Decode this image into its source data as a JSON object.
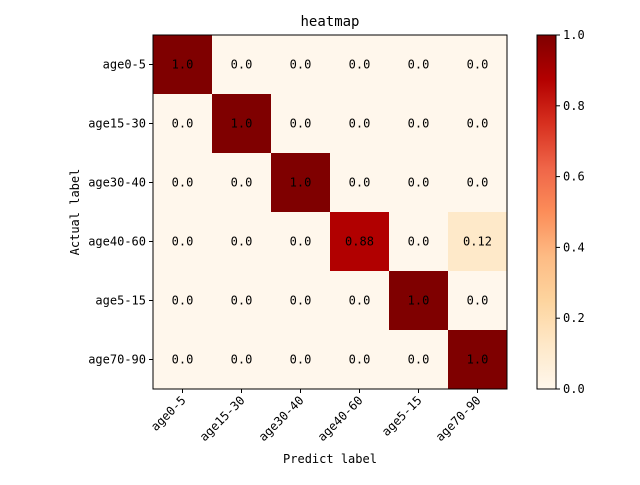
{
  "chart_data": {
    "type": "heatmap",
    "title": "heatmap",
    "xlabel": "Predict label",
    "ylabel": "Actual label",
    "x_categories": [
      "age0-5",
      "age15-30",
      "age30-40",
      "age40-60",
      "age5-15",
      "age70-90"
    ],
    "y_categories": [
      "age0-5",
      "age15-30",
      "age30-40",
      "age40-60",
      "age5-15",
      "age70-90"
    ],
    "values": [
      [
        1.0,
        0.0,
        0.0,
        0.0,
        0.0,
        0.0
      ],
      [
        0.0,
        1.0,
        0.0,
        0.0,
        0.0,
        0.0
      ],
      [
        0.0,
        0.0,
        1.0,
        0.0,
        0.0,
        0.0
      ],
      [
        0.0,
        0.0,
        0.0,
        0.88,
        0.0,
        0.12
      ],
      [
        0.0,
        0.0,
        0.0,
        0.0,
        1.0,
        0.0
      ],
      [
        0.0,
        0.0,
        0.0,
        0.0,
        0.0,
        1.0
      ]
    ],
    "cell_labels": [
      [
        "1.0",
        "0.0",
        "0.0",
        "0.0",
        "0.0",
        "0.0"
      ],
      [
        "0.0",
        "1.0",
        "0.0",
        "0.0",
        "0.0",
        "0.0"
      ],
      [
        "0.0",
        "0.0",
        "1.0",
        "0.0",
        "0.0",
        "0.0"
      ],
      [
        "0.0",
        "0.0",
        "0.0",
        "0.88",
        "0.0",
        "0.12"
      ],
      [
        "0.0",
        "0.0",
        "0.0",
        "0.0",
        "1.0",
        "0.0"
      ],
      [
        "0.0",
        "0.0",
        "0.0",
        "0.0",
        "0.0",
        "1.0"
      ]
    ],
    "colorbar": {
      "range": [
        0,
        1
      ],
      "ticks": [
        "0.0",
        "0.2",
        "0.4",
        "0.6",
        "0.8",
        "1.0"
      ],
      "colormap": "OrRd"
    }
  }
}
